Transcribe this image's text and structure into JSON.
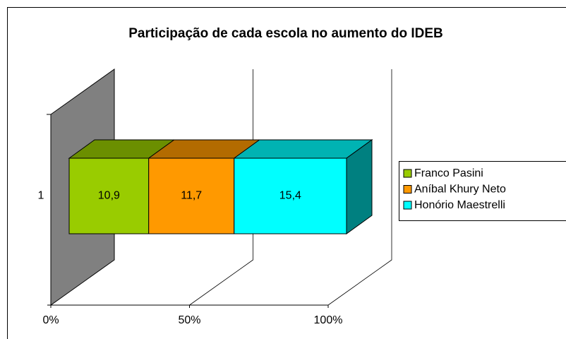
{
  "chart_data": {
    "type": "bar",
    "orientation": "horizontal",
    "stacking": "percent",
    "three_d": true,
    "title": "Participação de cada escola no aumento do IDEB",
    "categories": [
      "1"
    ],
    "series": [
      {
        "name": "Franco Pasini",
        "color": "#99cc00",
        "values": [
          10.9
        ],
        "value_labels": [
          "10,9"
        ]
      },
      {
        "name": "Aníbal Khury Neto",
        "color": "#ff9900",
        "values": [
          11.7
        ],
        "value_labels": [
          "11,7"
        ]
      },
      {
        "name": "Honório Maestrelli",
        "color": "#00ffff",
        "values": [
          15.4
        ],
        "value_labels": [
          "15,4"
        ]
      }
    ],
    "xlim": [
      0,
      100
    ],
    "xticks": [
      {
        "value": 0,
        "label": "0%"
      },
      {
        "value": 50,
        "label": "50%"
      },
      {
        "value": 100,
        "label": "100%"
      }
    ],
    "grid": true,
    "legend": "right"
  }
}
